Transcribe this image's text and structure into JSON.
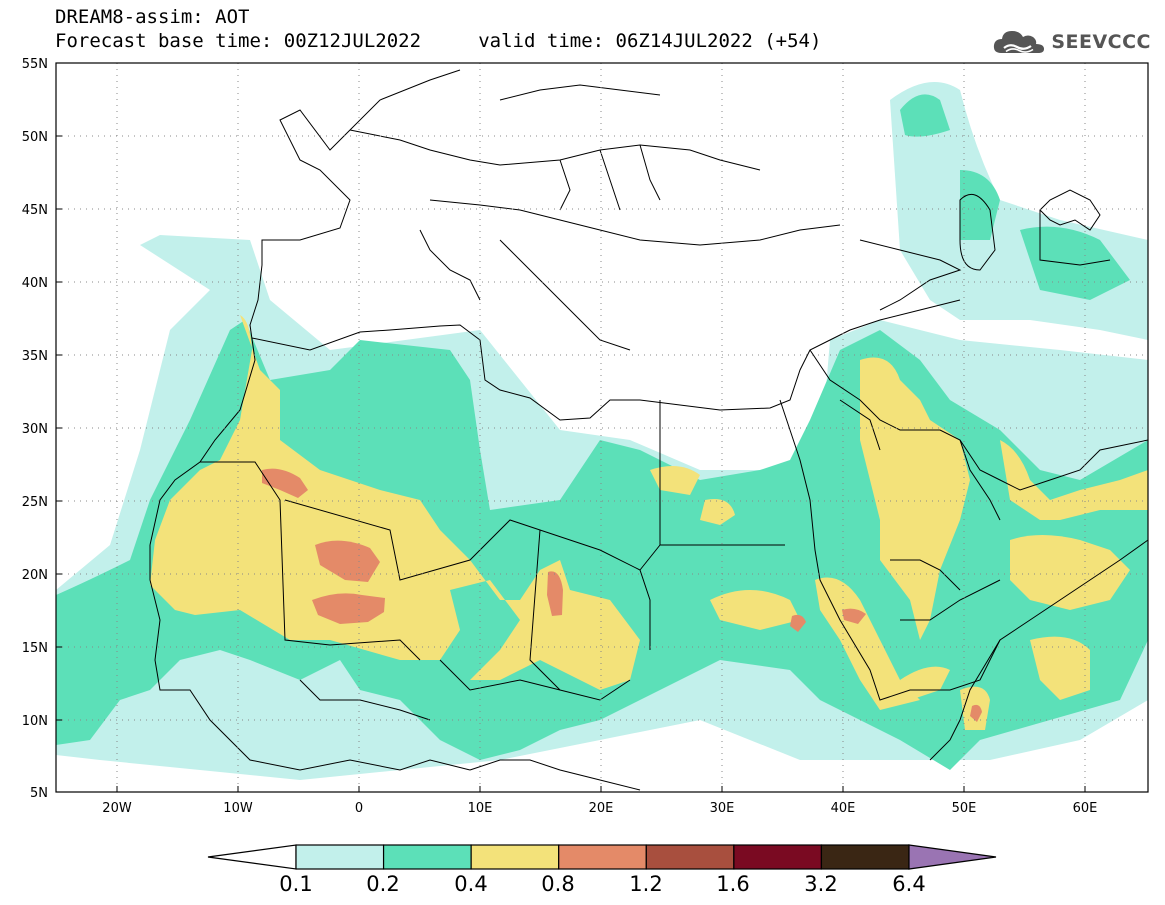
{
  "title_line1": "DREAM8-assim: AOT",
  "title_line2": "Forecast base time: 00Z12JUL2022     valid time: 06Z14JUL2022 (+54)",
  "logo_text": "SEEVCCC",
  "map": {
    "projection": "lat-lon",
    "lon_range": [
      -25,
      65
    ],
    "lat_range": [
      5,
      55
    ],
    "lat_ticks": [
      "5N",
      "10N",
      "15N",
      "20N",
      "25N",
      "30N",
      "35N",
      "40N",
      "45N",
      "50N",
      "55N"
    ],
    "lon_ticks": [
      "20W",
      "10W",
      "0",
      "10E",
      "20E",
      "30E",
      "40E",
      "50E",
      "60E"
    ],
    "grid": "dotted"
  },
  "colorbar": {
    "labels": [
      "0.1",
      "0.2",
      "0.4",
      "0.8",
      "1.2",
      "1.6",
      "3.2",
      "6.4"
    ],
    "colors": [
      "#c2f0eb",
      "#5ce0b8",
      "#f3e27a",
      "#e48a68",
      "#a84f3e",
      "#7a0a22",
      "#3a2614",
      "#9a74b3"
    ],
    "under_color": "#ffffff",
    "over_color": "#9a74b3"
  }
}
